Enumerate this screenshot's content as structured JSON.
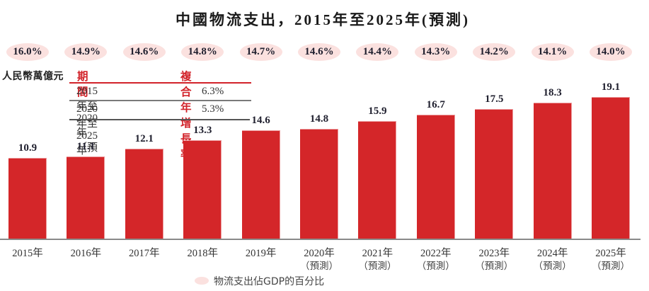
{
  "colors": {
    "bar": "#d42629",
    "oval": "#fbe1df",
    "header_red": "#d2232a",
    "rule_gray": "#7a7a7a",
    "rule_dark": "#555555"
  },
  "chart_data": {
    "type": "bar",
    "title": "中國物流支出，2015年至2025年(預測)",
    "ylabel": "人民幣萬億元",
    "xlabel": "",
    "categories": [
      "2015年",
      "2016年",
      "2017年",
      "2018年",
      "2019年",
      "2020年",
      "2021年",
      "2022年",
      "2023年",
      "2024年",
      "2025年"
    ],
    "category_sublabels": [
      "",
      "",
      "",
      "",
      "",
      "（預測）",
      "（預測）",
      "（預測）",
      "（預測）",
      "（預測）",
      "（預測）"
    ],
    "values": [
      10.9,
      11.1,
      12.1,
      13.3,
      14.6,
      14.8,
      15.9,
      16.7,
      17.5,
      18.3,
      19.1
    ],
    "value_labels": [
      "10.9",
      "11.1",
      "12.1",
      "13.3",
      "14.6",
      "14.8",
      "15.9",
      "16.7",
      "17.5",
      "18.3",
      "19.1"
    ],
    "secondary_series": {
      "name": "物流支出佔GDP的百分比",
      "values": [
        16.0,
        14.9,
        14.6,
        14.8,
        14.7,
        14.6,
        14.4,
        14.3,
        14.2,
        14.1,
        14.0
      ],
      "labels": [
        "16.0%",
        "14.9%",
        "14.6%",
        "14.8%",
        "14.7%",
        "14.6%",
        "14.4%",
        "14.3%",
        "14.2%",
        "14.1%",
        "14.0%"
      ],
      "placement": "top"
    },
    "legend": {
      "entries": [
        "物流支出佔GDP的百分比"
      ],
      "placement": "bottom-center"
    },
    "grid": false,
    "cagr_table": {
      "headers": [
        "期間",
        "複合年增長率"
      ],
      "rows": [
        [
          "2015年至2020年（預測）",
          "6.3%"
        ],
        [
          "2020年至2025年（預測）",
          "5.3%"
        ]
      ]
    }
  }
}
